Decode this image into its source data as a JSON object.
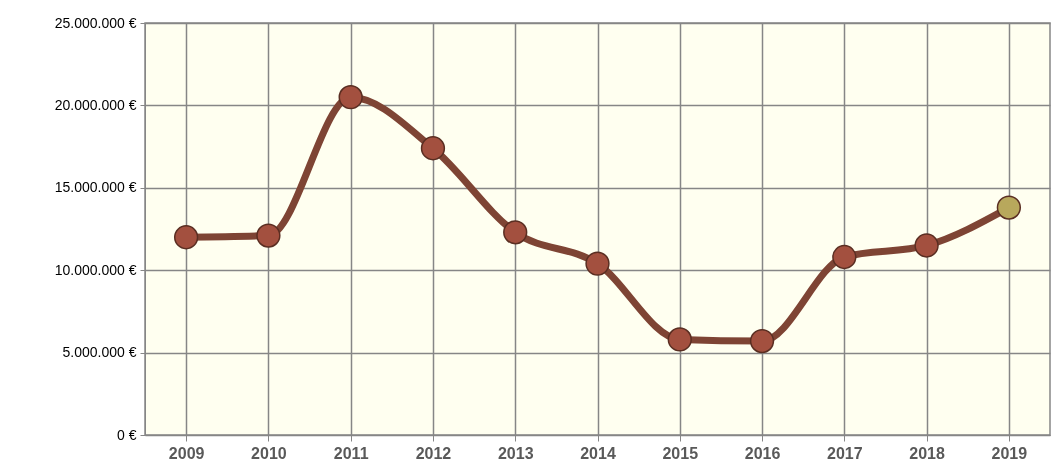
{
  "chart_data": {
    "type": "line",
    "categories": [
      "2009",
      "2010",
      "2011",
      "2012",
      "2013",
      "2014",
      "2015",
      "2016",
      "2017",
      "2018",
      "2019"
    ],
    "series": [
      {
        "color": "#7e4434",
        "colors": [
          "#a3503f",
          "#a3503f",
          "#a3503f",
          "#a3503f",
          "#a3503f",
          "#a3503f",
          "#a3503f",
          "#a3503f",
          "#a3503f",
          "#a3503f",
          "#b8a85c"
        ],
        "values": [
          12000000,
          12100000,
          20500000,
          17400000,
          12300000,
          10400000,
          5800000,
          5700000,
          10800000,
          11500000,
          13800000
        ]
      }
    ],
    "ylim": [
      0,
      25000000
    ],
    "yticks": [
      {
        "value": 0,
        "label": "0 €"
      },
      {
        "value": 5000000,
        "label": "5.000.000 €"
      },
      {
        "value": 10000000,
        "label": "10.000.000 €"
      },
      {
        "value": 15000000,
        "label": "15.000.000 €"
      },
      {
        "value": 20000000,
        "label": "20.000.000 €"
      },
      {
        "value": 25000000,
        "label": "25.000.000 €"
      }
    ],
    "grid": true,
    "marker": "circle",
    "line_style": "solid"
  }
}
